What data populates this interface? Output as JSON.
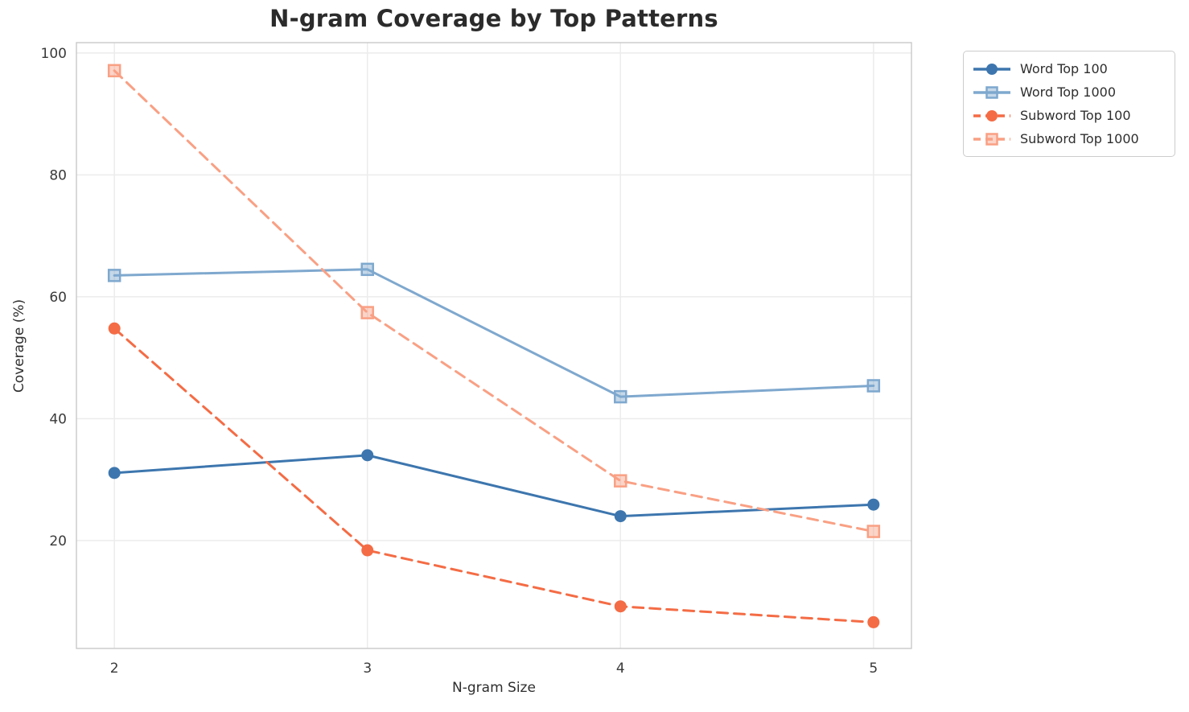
{
  "title": "N-gram Coverage by Top Patterns",
  "chart_data": {
    "type": "line",
    "title": "N-gram Coverage by Top Patterns",
    "xlabel": "N-gram Size",
    "ylabel": "Coverage (%)",
    "x": [
      2,
      3,
      4,
      5
    ],
    "xtick_labels": [
      "2",
      "3",
      "4",
      "5"
    ],
    "ytick_values": [
      20,
      40,
      60,
      80,
      100
    ],
    "ytick_labels": [
      "20",
      "40",
      "60",
      "80",
      "100"
    ],
    "xlim": [
      1.85,
      5.15
    ],
    "ylim": [
      2.3,
      101.7
    ],
    "grid": true,
    "legend_position": "outside-top-right",
    "series": [
      {
        "name": "Word Top 100",
        "values": [
          31.1,
          34.0,
          24.0,
          25.9
        ],
        "color": "#3d76ae",
        "linestyle": "solid",
        "marker": "circle"
      },
      {
        "name": "Word Top 1000",
        "values": [
          63.5,
          64.5,
          43.6,
          45.4
        ],
        "color": "#7fa8ce",
        "linestyle": "solid",
        "marker": "square"
      },
      {
        "name": "Subword Top 100",
        "values": [
          54.8,
          18.4,
          9.2,
          6.6
        ],
        "color": "#f46c45",
        "linestyle": "dashed",
        "marker": "circle"
      },
      {
        "name": "Subword Top 1000",
        "values": [
          97.1,
          57.4,
          29.8,
          21.5
        ],
        "color": "#f9a084",
        "linestyle": "dashed",
        "marker": "square"
      }
    ],
    "style": {
      "grid_color": "#ececec",
      "spine_color": "#c9c9c9",
      "tick_label_color": "#3a3a3a",
      "title_color": "#2b2b2b"
    }
  }
}
